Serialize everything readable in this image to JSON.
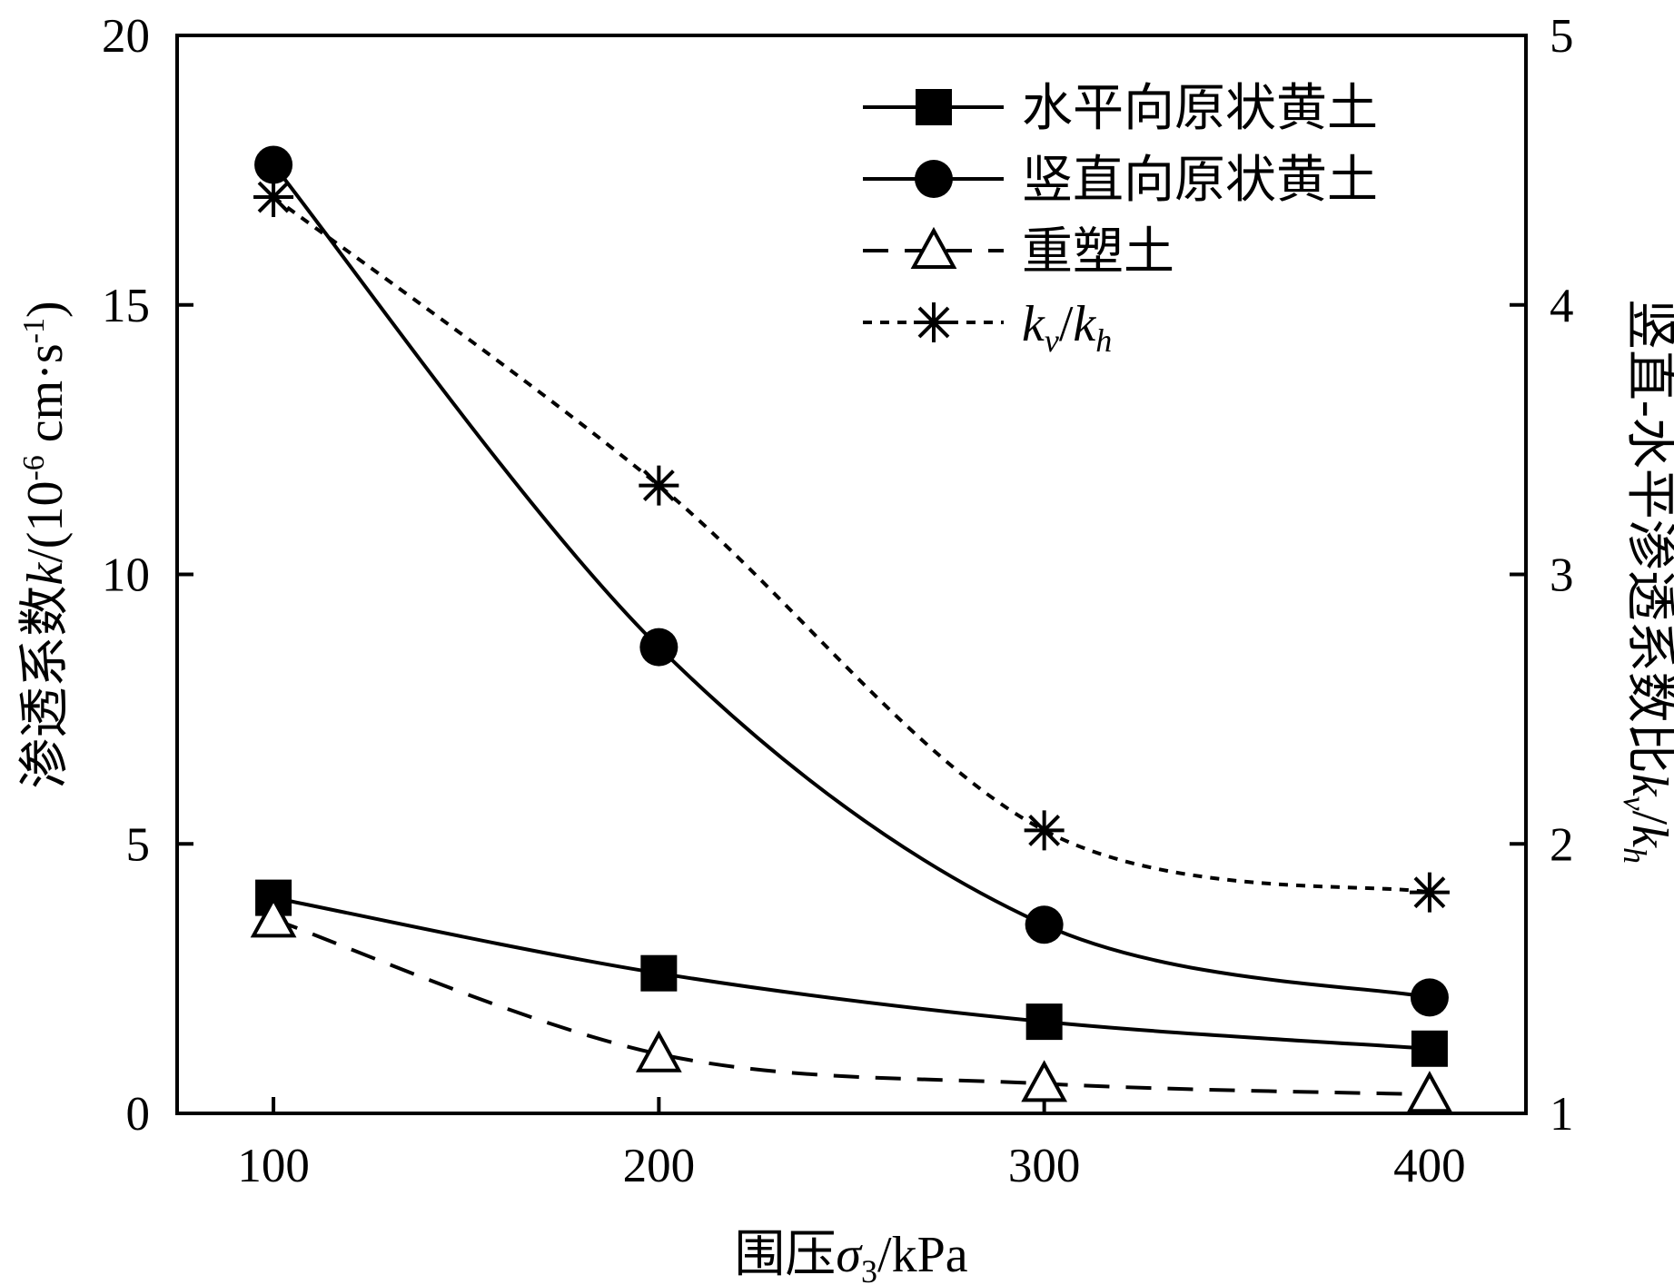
{
  "chart_data": {
    "type": "line",
    "x": [
      100,
      200,
      300,
      400
    ],
    "xlabel": {
      "prefix": "围压",
      "symbol": "σ",
      "sub": "3",
      "suffix": "/kPa"
    },
    "ylabel_left": {
      "prefix": "渗透系数",
      "symbol": "k",
      "unit": "/(10",
      "exp": "-6",
      "unit2": " cm·s",
      "exp2": "-1",
      "close": ")"
    },
    "ylabel_right": {
      "prefix": "竖直-水平渗透系数比",
      "k1": "k",
      "s1": "v",
      "slash": "/",
      "k2": "k",
      "s2": "h"
    },
    "xlim": [
      75,
      425
    ],
    "ylim_left": [
      0,
      20
    ],
    "ylim_right": [
      1,
      5
    ],
    "xticks": [
      "100",
      "200",
      "300",
      "400"
    ],
    "yticks_left": [
      "0",
      "5",
      "10",
      "15",
      "20"
    ],
    "yticks_right": [
      "1",
      "2",
      "3",
      "4",
      "5"
    ],
    "grid": false,
    "legend_position": "top-right",
    "series": [
      {
        "name": "水平向原状黄土",
        "axis": "left",
        "marker": "square-filled",
        "line": "solid",
        "values": [
          4.0,
          2.6,
          1.7,
          1.2
        ]
      },
      {
        "name": "竖直向原状黄土",
        "axis": "left",
        "marker": "circle-filled",
        "line": "solid",
        "values": [
          17.6,
          8.65,
          3.5,
          2.15
        ]
      },
      {
        "name": "重塑土",
        "axis": "left",
        "marker": "triangle-open",
        "line": "dashed",
        "values": [
          3.6,
          1.1,
          0.55,
          0.35
        ]
      },
      {
        "name": "kv/kh",
        "name_parts": {
          "k1": "k",
          "s1": "v",
          "slash": "/",
          "k2": "k",
          "s2": "h"
        },
        "axis": "right",
        "marker": "asterisk",
        "line": "dotted",
        "values": [
          4.4,
          3.33,
          2.05,
          1.82
        ]
      }
    ],
    "colors": {
      "line": "#000000",
      "background": "#ffffff"
    }
  }
}
